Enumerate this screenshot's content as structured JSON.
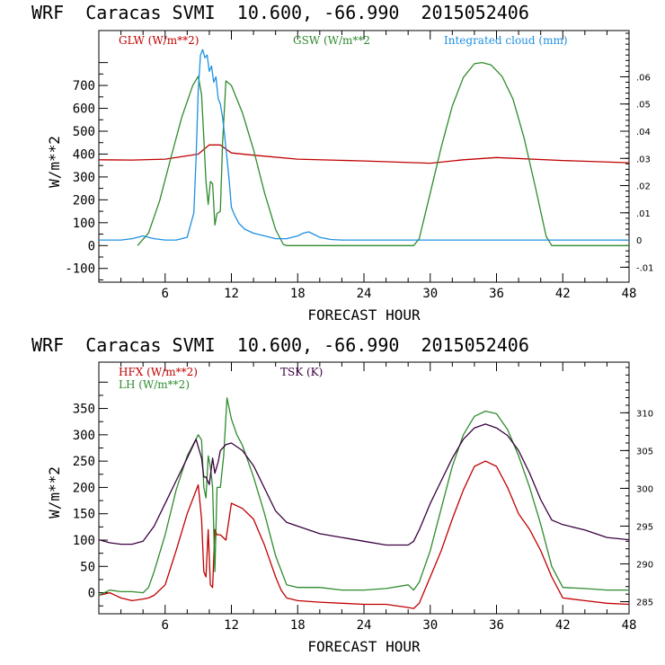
{
  "chart_data": [
    {
      "type": "line",
      "title": "WRF  Caracas SVMI  10.600, -66.990  2015052406",
      "xlabel": "FORECAST HOUR",
      "ylabel": "W/m**2",
      "xlim": [
        0,
        48
      ],
      "ylim": [
        -160,
        940
      ],
      "xticks": [
        "6",
        "12",
        "18",
        "24",
        "30",
        "36",
        "42",
        "48"
      ],
      "yticks": [
        "-100",
        "0",
        "100",
        "200",
        "300",
        "400",
        "500",
        "600",
        "700"
      ],
      "y2lim": [
        -0.0155,
        0.077
      ],
      "y2ticks": [
        "-.01",
        "0",
        ".01",
        ".02",
        ".03",
        ".04",
        ".05",
        ".06"
      ],
      "series": [
        {
          "name": "GLW (W/m**2)",
          "color": "#c00000",
          "axis": "left",
          "x": [
            0,
            3,
            6,
            9,
            10,
            11,
            12,
            14,
            18,
            24,
            30,
            33,
            36,
            42,
            48
          ],
          "y": [
            375,
            374,
            378,
            400,
            440,
            440,
            405,
            395,
            378,
            370,
            360,
            375,
            385,
            372,
            362
          ]
        },
        {
          "name": "GSW (W/m**2",
          "color": "#2e8b2e",
          "axis": "left",
          "x": [
            3.5,
            4.5,
            5.5,
            6.5,
            7.5,
            8.5,
            9,
            9.3,
            9.5,
            9.7,
            9.9,
            10.1,
            10.3,
            10.5,
            10.7,
            11,
            11.2,
            11.5,
            12,
            13,
            14,
            15,
            16,
            16.7,
            17,
            28.5,
            29,
            30,
            31,
            32,
            33,
            34,
            34.7,
            35.5,
            36.5,
            37.5,
            38.5,
            39.5,
            40.5,
            41,
            48
          ],
          "y": [
            0,
            55,
            195,
            380,
            560,
            700,
            740,
            660,
            470,
            280,
            180,
            280,
            270,
            90,
            140,
            150,
            450,
            720,
            700,
            580,
            420,
            230,
            70,
            5,
            0,
            0,
            30,
            230,
            430,
            610,
            735,
            795,
            800,
            790,
            740,
            640,
            470,
            260,
            40,
            0,
            0
          ]
        },
        {
          "name": "Integrated cloud (mm)",
          "color": "#1e90e0",
          "axis": "right",
          "x": [
            0,
            2,
            3,
            3.5,
            4,
            4.5,
            5,
            6,
            7,
            8,
            8.6,
            8.8,
            9,
            9.2,
            9.4,
            9.6,
            9.8,
            10,
            10.2,
            10.4,
            10.6,
            10.8,
            11,
            11.2,
            11.4,
            11.6,
            11.8,
            12,
            12.3,
            12.7,
            13.2,
            14,
            15,
            16,
            17,
            18,
            18.5,
            19,
            19.5,
            20,
            21,
            22,
            48
          ],
          "y": [
            0,
            0,
            0.0005,
            0.001,
            0.0015,
            0.001,
            0.0005,
            0,
            0,
            0.001,
            0.01,
            0.03,
            0.055,
            0.068,
            0.07,
            0.067,
            0.068,
            0.062,
            0.064,
            0.058,
            0.06,
            0.052,
            0.05,
            0.045,
            0.038,
            0.03,
            0.022,
            0.012,
            0.009,
            0.006,
            0.004,
            0.0025,
            0.0015,
            0.0005,
            0.0005,
            0.0015,
            0.0025,
            0.003,
            0.002,
            0.001,
            0.0002,
            0,
            0
          ]
        }
      ]
    },
    {
      "type": "line",
      "title": "WRF  Caracas SVMI  10.600, -66.990  2015052406",
      "xlabel": "FORECAST HOUR",
      "ylabel": "W/m**2",
      "xlim": [
        0,
        48
      ],
      "ylim": [
        -40,
        438
      ],
      "xticks": [
        "6",
        "12",
        "18",
        "24",
        "30",
        "36",
        "42",
        "48"
      ],
      "yticks": [
        "0",
        "50",
        "100",
        "150",
        "200",
        "250",
        "300",
        "350"
      ],
      "y2lim": [
        283.4,
        316.7
      ],
      "y2ticks": [
        "285",
        "290",
        "295",
        "300",
        "305",
        "310"
      ],
      "series": [
        {
          "name": "HFX (W/m**2)",
          "color": "#c00000",
          "axis": "left",
          "x": [
            0,
            1,
            2,
            3,
            4,
            4.5,
            5,
            6,
            7,
            8,
            9,
            9.3,
            9.5,
            9.7,
            9.9,
            10.1,
            10.3,
            10.5,
            10.7,
            11,
            11.5,
            12,
            13,
            14,
            15,
            16,
            16.5,
            17,
            18,
            20,
            22,
            24,
            26,
            28,
            28.5,
            29,
            30,
            31,
            32,
            33,
            34,
            35,
            36,
            37,
            38,
            39,
            40,
            41,
            42,
            44,
            46,
            48
          ],
          "y": [
            -5,
            0,
            -10,
            -15,
            -12,
            -10,
            -5,
            15,
            80,
            150,
            205,
            140,
            40,
            30,
            120,
            15,
            10,
            120,
            110,
            110,
            100,
            170,
            160,
            140,
            90,
            30,
            5,
            -10,
            -15,
            -18,
            -20,
            -22,
            -22,
            -28,
            -30,
            -20,
            30,
            80,
            140,
            195,
            240,
            250,
            240,
            200,
            150,
            120,
            80,
            30,
            -10,
            -15,
            -20,
            -22
          ]
        },
        {
          "name": "LH  (W/m**2)",
          "color": "#2e8b2e",
          "axis": "left",
          "x": [
            0,
            1,
            2,
            3,
            4,
            4.5,
            5,
            6,
            7,
            8,
            9,
            9.3,
            9.5,
            9.7,
            9.9,
            10.1,
            10.3,
            10.5,
            10.7,
            11,
            11.3,
            11.6,
            12,
            12.5,
            13,
            14,
            15,
            16,
            17,
            18,
            20,
            22,
            24,
            26,
            28,
            28.5,
            29,
            30,
            31,
            32,
            33,
            34,
            35,
            36,
            37,
            38,
            39,
            40,
            41,
            42,
            44,
            46,
            48
          ],
          "y": [
            -5,
            5,
            2,
            2,
            0,
            10,
            40,
            110,
            195,
            260,
            300,
            290,
            200,
            180,
            260,
            240,
            200,
            40,
            200,
            200,
            260,
            370,
            330,
            300,
            280,
            220,
            150,
            70,
            15,
            10,
            10,
            5,
            5,
            8,
            15,
            5,
            20,
            80,
            160,
            240,
            300,
            335,
            345,
            340,
            310,
            260,
            200,
            130,
            50,
            10,
            8,
            5,
            5
          ]
        },
        {
          "name": "TSK (K)",
          "color": "#3a0040",
          "axis": "right",
          "x": [
            0,
            1,
            2,
            3,
            4,
            5,
            6,
            7,
            8,
            8.8,
            9,
            9.3,
            9.5,
            9.7,
            10,
            10.3,
            10.5,
            10.8,
            11,
            11.5,
            12,
            13,
            14,
            15,
            16,
            17,
            18,
            20,
            22,
            24,
            26,
            28,
            28.5,
            29,
            30,
            31,
            32,
            33,
            34,
            35,
            36,
            37,
            38,
            39,
            40,
            41,
            42,
            44,
            46,
            48
          ],
          "y": [
            293.2,
            292.8,
            292.6,
            292.6,
            293,
            295,
            298,
            301,
            304,
            306.5,
            305.5,
            304,
            301.5,
            301.5,
            300.5,
            304,
            302,
            303.5,
            305,
            305.8,
            306,
            305,
            303,
            300,
            297,
            295.5,
            295,
            294,
            293.5,
            293,
            292.5,
            292.5,
            293,
            294.5,
            298,
            301,
            304,
            306.5,
            308,
            308.5,
            308,
            307,
            305,
            302,
            298.5,
            295.8,
            295.2,
            294.5,
            293.5,
            293.2
          ]
        }
      ]
    }
  ]
}
